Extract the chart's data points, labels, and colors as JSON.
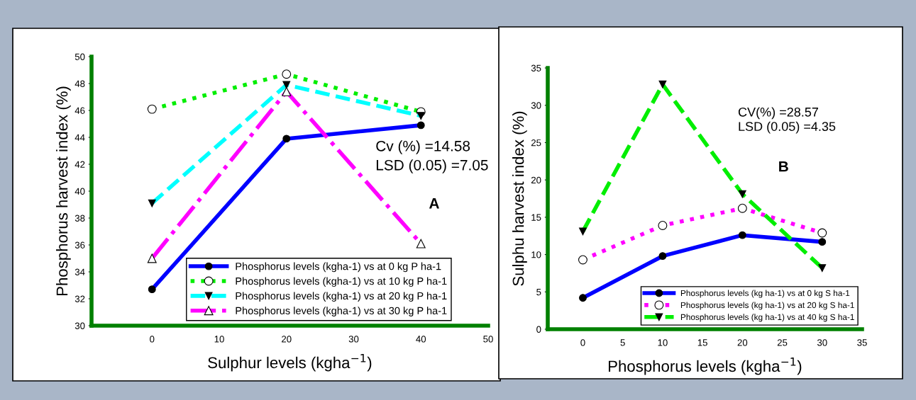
{
  "chart_data": [
    {
      "type": "line",
      "xlabel": "Sulphur levels (kgha$^{−1}$)",
      "ylabel": "Phosphorus harvest index (%)",
      "x": [
        0,
        20,
        40
      ],
      "xlim": [
        -9,
        50
      ],
      "xticks": [
        0,
        10,
        20,
        30,
        40,
        50
      ],
      "ylim": [
        30,
        50
      ],
      "yticks": [
        30,
        32,
        34,
        36,
        38,
        40,
        42,
        44,
        46,
        48,
        50
      ],
      "grid": false,
      "legend": "bottom right",
      "annotations": [
        {
          "text": "Cv (%) =14.58"
        },
        {
          "text": "LSD (0.05) =7.05"
        },
        {
          "text": "A"
        }
      ],
      "series": [
        {
          "name": "Phosphorus levels (kgha-1) vs at 0 kg P ha-1",
          "color": "#0000ff",
          "values": [
            32.7,
            43.9,
            44.9
          ],
          "marker": "circle",
          "line_style": "solid"
        },
        {
          "name": "Phosphorus levels (kgha-1) vs at 10 kg P ha-1",
          "color": "#00ee00",
          "values": [
            46.1,
            48.7,
            45.9
          ],
          "marker": "circle",
          "line_style": "dotted"
        },
        {
          "name": "Phosphorus levels (kgha-1) vs at 20 kg P ha-1",
          "color": "#00ffff",
          "values": [
            39.1,
            47.9,
            45.6
          ],
          "marker": "triangle_down",
          "line_style": "dashed"
        },
        {
          "name": "Phosphorus levels (kgha-1) vs at 30 kg P ha-1",
          "color": "#ff00ff",
          "values": [
            35.0,
            47.4,
            36.1
          ],
          "marker": "triangle",
          "line_style": "dashdot"
        }
      ]
    },
    {
      "type": "line",
      "xlabel": "Phosphorus levels (kgha$^{−1}$)",
      "ylabel": "Sulphu harvest index (%)",
      "x": [
        0,
        10,
        20,
        30
      ],
      "xlim": [
        -4.4,
        35
      ],
      "xticks": [
        0,
        5,
        10,
        15,
        20,
        25,
        30,
        35
      ],
      "ylim": [
        0,
        35
      ],
      "yticks": [
        0,
        5,
        10,
        15,
        20,
        25,
        30,
        35
      ],
      "grid": false,
      "legend": "bottom right",
      "annotations": [
        {
          "text": "CV(%) =28.57"
        },
        {
          "text": "LSD (0.05) =4.35"
        },
        {
          "text": "B"
        }
      ],
      "series": [
        {
          "name": "Phosphorus levels (kg ha-1) vs at 0 kg S ha-1",
          "color": "#0000ff",
          "values": [
            4.2,
            9.8,
            12.6,
            11.7
          ],
          "marker": "circle",
          "line_style": "solid"
        },
        {
          "name": "Phosphorus levels (kg ha-1) vs at 20 kg S ha-1",
          "color": "#ff00ff",
          "values": [
            9.3,
            13.9,
            16.2,
            12.9
          ],
          "marker": "circle",
          "line_style": "dotted"
        },
        {
          "name": "Phosphorus levels (kg ha-1) vs at 40 kg S ha-1",
          "color": "#00ee00",
          "values": [
            13.1,
            32.8,
            18.1,
            8.2
          ],
          "marker": "triangle_down",
          "line_style": "dashed"
        }
      ]
    }
  ]
}
